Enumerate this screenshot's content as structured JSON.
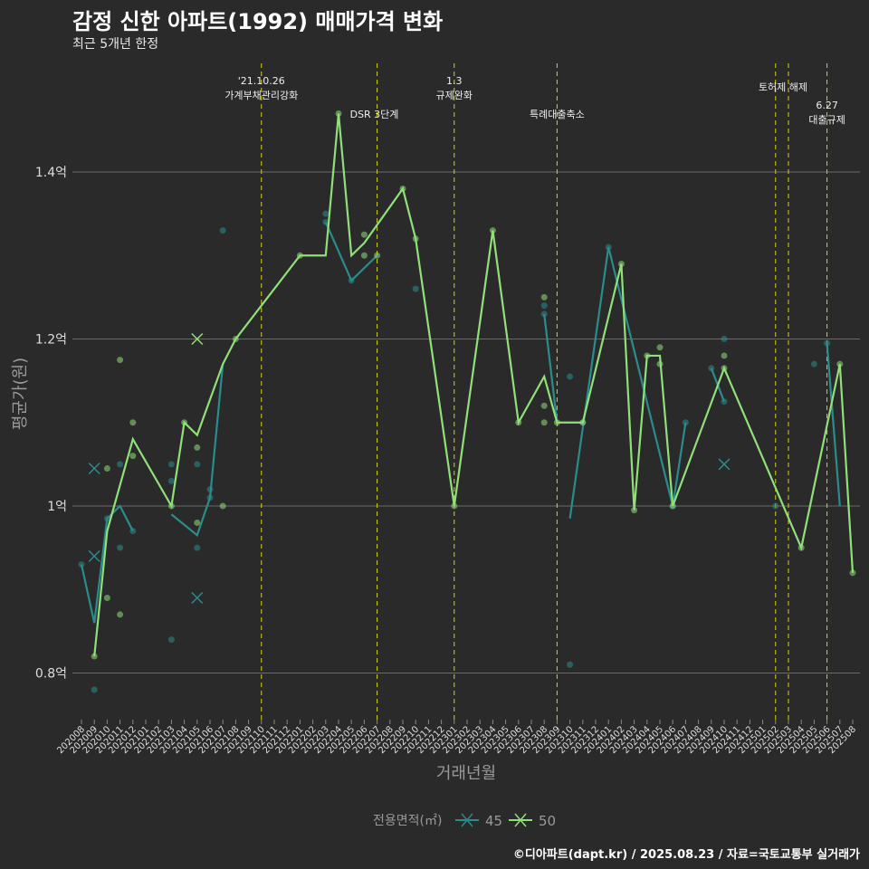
{
  "title": "감정 신한 아파트(1992) 매매가격 변화",
  "subtitle": "최근 5개년 한정",
  "caption": "©디아파트(dapt.kr) / 2025.08.23 / 자료=국토교통부 실거래가",
  "chart_data": {
    "type": "line",
    "xlabel": "거래년월",
    "ylabel": "평균가(원)",
    "ylim": [
      0.75,
      1.52
    ],
    "y_ticks": [
      {
        "v": 0.8,
        "label": "0.8억"
      },
      {
        "v": 1.0,
        "label": "1억"
      },
      {
        "v": 1.2,
        "label": "1.2억"
      },
      {
        "v": 1.4,
        "label": "1.4억"
      }
    ],
    "grid": true,
    "legend": {
      "title": "전용면적(㎡)",
      "placement": "bottom",
      "entries": [
        "45",
        "50"
      ]
    },
    "categories": [
      "202008",
      "202009",
      "202010",
      "202011",
      "202012",
      "202101",
      "202102",
      "202103",
      "202104",
      "202105",
      "202106",
      "202107",
      "202108",
      "202109",
      "202110",
      "202111",
      "202112",
      "202201",
      "202202",
      "202203",
      "202204",
      "202205",
      "202206",
      "202207",
      "202208",
      "202209",
      "202210",
      "202211",
      "202212",
      "202301",
      "202302",
      "202303",
      "202304",
      "202305",
      "202306",
      "202307",
      "202308",
      "202309",
      "202310",
      "202311",
      "202312",
      "202401",
      "202402",
      "202403",
      "202404",
      "202405",
      "202406",
      "202407",
      "202408",
      "202409",
      "202410",
      "202411",
      "202412",
      "202501",
      "202502",
      "202503",
      "202504",
      "202505",
      "202506",
      "202507",
      "202508"
    ],
    "series": [
      {
        "name": "45",
        "color": "#2a8c8c",
        "segments": [
          [
            [
              "202008",
              0.93
            ],
            [
              "202009",
              0.86
            ],
            [
              "202010",
              0.985
            ],
            [
              "202011",
              1.0
            ],
            [
              "202012",
              0.97
            ]
          ],
          [
            [
              "202103",
              0.99
            ],
            [
              "202105",
              0.965
            ],
            [
              "202106",
              1.01
            ],
            [
              "202107",
              1.17
            ]
          ],
          [
            [
              "202203",
              1.34
            ],
            [
              "202205",
              1.27
            ],
            [
              "202207",
              1.3
            ]
          ],
          [
            [
              "202308",
              1.23
            ],
            [
              "202309",
              1.1
            ]
          ],
          [
            [
              "202310",
              0.985
            ],
            [
              "202401",
              1.31
            ],
            [
              "202406",
              1.0
            ],
            [
              "202407",
              1.1
            ]
          ],
          [
            [
              "202409",
              1.165
            ],
            [
              "202410",
              1.125
            ]
          ],
          [
            [
              "202506",
              1.195
            ],
            [
              "202507",
              1.0
            ]
          ]
        ],
        "points": [
          [
            "202008",
            0.93
          ],
          [
            "202009",
            0.78
          ],
          [
            "202010",
            0.985
          ],
          [
            "202011",
            1.05
          ],
          [
            "202011",
            0.95
          ],
          [
            "202012",
            0.97
          ],
          [
            "202103",
            1.05
          ],
          [
            "202103",
            1.03
          ],
          [
            "202103",
            0.84
          ],
          [
            "202105",
            1.05
          ],
          [
            "202105",
            0.95
          ],
          [
            "202106",
            1.02
          ],
          [
            "202106",
            1.01
          ],
          [
            "202107",
            1.33
          ],
          [
            "202203",
            1.35
          ],
          [
            "202203",
            1.34
          ],
          [
            "202205",
            1.27
          ],
          [
            "202210",
            1.26
          ],
          [
            "202308",
            1.23
          ],
          [
            "202308",
            1.24
          ],
          [
            "202310",
            1.155
          ],
          [
            "202310",
            0.81
          ],
          [
            "202311",
            1.1
          ],
          [
            "202401",
            1.31
          ],
          [
            "202406",
            1.0
          ],
          [
            "202407",
            1.1
          ],
          [
            "202409",
            1.165
          ],
          [
            "202410",
            1.2
          ],
          [
            "202410",
            1.125
          ],
          [
            "202502",
            1.0
          ],
          [
            "202505",
            1.17
          ],
          [
            "202506",
            1.195
          ]
        ],
        "x_marks": [
          [
            "202009",
            1.045
          ],
          [
            "202009",
            0.94
          ],
          [
            "202105",
            0.89
          ],
          [
            "202410",
            1.05
          ]
        ]
      },
      {
        "name": "50",
        "color": "#90e07a",
        "segments": [
          [
            [
              "202009",
              0.82
            ],
            [
              "202010",
              0.97
            ],
            [
              "202012",
              1.08
            ],
            [
              "202103",
              1.0
            ],
            [
              "202104",
              1.1
            ],
            [
              "202105",
              1.085
            ],
            [
              "202107",
              1.17
            ],
            [
              "202108",
              1.2
            ],
            [
              "202201",
              1.3
            ],
            [
              "202203",
              1.3
            ],
            [
              "202204",
              1.47
            ],
            [
              "202205",
              1.3
            ],
            [
              "202206",
              1.315
            ],
            [
              "202209",
              1.38
            ],
            [
              "202210",
              1.32
            ],
            [
              "202301",
              1.0
            ],
            [
              "202304",
              1.33
            ],
            [
              "202306",
              1.1
            ],
            [
              "202308",
              1.155
            ],
            [
              "202309",
              1.1
            ],
            [
              "202311",
              1.1
            ],
            [
              "202402",
              1.29
            ],
            [
              "202403",
              0.995
            ],
            [
              "202404",
              1.18
            ],
            [
              "202405",
              1.18
            ],
            [
              "202406",
              1.0
            ],
            [
              "202410",
              1.165
            ],
            [
              "202504",
              0.95
            ],
            [
              "202507",
              1.17
            ],
            [
              "202508",
              0.92
            ]
          ]
        ],
        "points": [
          [
            "202009",
            0.82
          ],
          [
            "202010",
            1.045
          ],
          [
            "202010",
            0.89
          ],
          [
            "202011",
            1.175
          ],
          [
            "202011",
            0.87
          ],
          [
            "202012",
            1.1
          ],
          [
            "202012",
            1.06
          ],
          [
            "202103",
            1.0
          ],
          [
            "202104",
            1.1
          ],
          [
            "202105",
            1.07
          ],
          [
            "202105",
            0.98
          ],
          [
            "202107",
            1.0
          ],
          [
            "202108",
            1.2
          ],
          [
            "202201",
            1.3
          ],
          [
            "202204",
            1.47
          ],
          [
            "202206",
            1.325
          ],
          [
            "202206",
            1.3
          ],
          [
            "202207",
            1.3
          ],
          [
            "202209",
            1.38
          ],
          [
            "202210",
            1.32
          ],
          [
            "202301",
            1.0
          ],
          [
            "202304",
            1.33
          ],
          [
            "202306",
            1.1
          ],
          [
            "202308",
            1.25
          ],
          [
            "202308",
            1.12
          ],
          [
            "202308",
            1.1
          ],
          [
            "202309",
            1.1
          ],
          [
            "202311",
            1.1
          ],
          [
            "202402",
            1.29
          ],
          [
            "202403",
            0.995
          ],
          [
            "202404",
            1.18
          ],
          [
            "202405",
            1.19
          ],
          [
            "202405",
            1.17
          ],
          [
            "202406",
            1.0
          ],
          [
            "202410",
            1.18
          ],
          [
            "202410",
            1.165
          ],
          [
            "202504",
            0.95
          ],
          [
            "202507",
            1.17
          ],
          [
            "202508",
            0.92
          ]
        ],
        "x_marks": [
          [
            "202105",
            1.2
          ]
        ]
      }
    ],
    "events": [
      {
        "month": "202110",
        "lines": [
          "'21.10.26",
          "가계부채관리강화"
        ],
        "row": 0
      },
      {
        "month": "202207",
        "lines": [
          "DSR 3단계"
        ],
        "row": 2
      },
      {
        "month": "202301",
        "lines": [
          "1.3",
          "규제완화"
        ],
        "row": 0
      },
      {
        "month": "202309",
        "lines": [
          "특례대출축소"
        ],
        "row": 2
      },
      {
        "month": "202502",
        "lines": [],
        "row": 1
      },
      {
        "month": "202503",
        "lines": [
          "토허제 해제"
        ],
        "row": 1
      },
      {
        "month": "202506",
        "lines": [
          "6.27",
          "대출규제"
        ],
        "row": 3
      }
    ]
  }
}
